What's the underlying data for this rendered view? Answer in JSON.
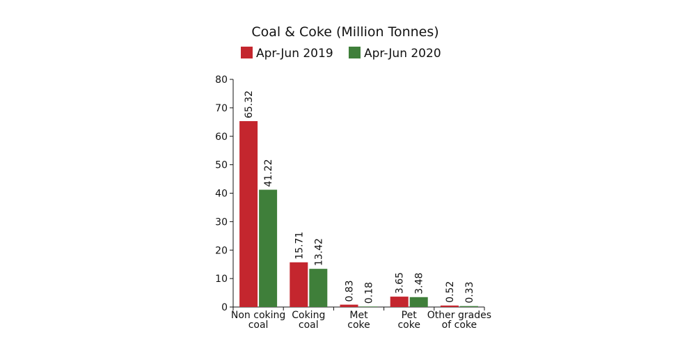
{
  "chart_data": {
    "type": "bar",
    "title": "Coal & Coke (Million Tonnes)",
    "categories": [
      [
        "Non coking",
        "coal"
      ],
      [
        "Coking",
        "coal"
      ],
      [
        "Met",
        "coke"
      ],
      [
        "Pet",
        "coke"
      ],
      [
        "Other grades",
        "of coke"
      ]
    ],
    "series": [
      {
        "name": "Apr-Jun 2019",
        "color": "#c4262e",
        "values": [
          65.32,
          15.71,
          0.83,
          3.65,
          0.52
        ],
        "labels": [
          "65.32",
          "15.71",
          "0.83",
          "3.65",
          "0.52"
        ]
      },
      {
        "name": "Apr-Jun 2020",
        "color": "#3f7f3a",
        "values": [
          41.22,
          13.42,
          0.18,
          3.48,
          0.33
        ],
        "labels": [
          "41.22",
          "13.42",
          "0.18",
          "3.48",
          "0.33"
        ]
      }
    ],
    "ylim": [
      0,
      80
    ],
    "yticks": [
      0,
      10,
      20,
      30,
      40,
      50,
      60,
      70,
      80
    ],
    "xlabel": "",
    "ylabel": "",
    "legend_position": "top",
    "grid": false
  }
}
